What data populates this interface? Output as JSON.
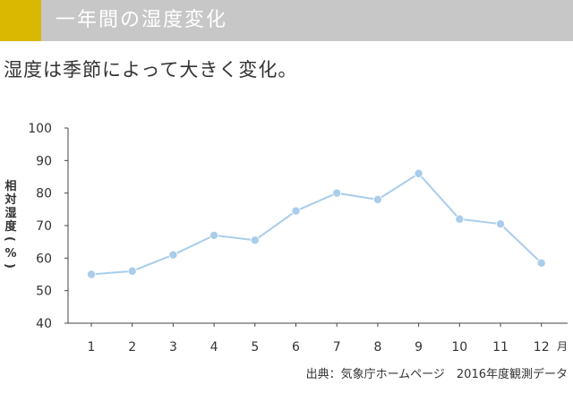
{
  "header": {
    "title": "一年間の湿度変化"
  },
  "subtitle": "湿度は季節によって大きく変化。",
  "source": "出典：気象庁ホームページ　2016年度観測データ",
  "colors": {
    "accent": "#d8b800",
    "header_bg": "#c7c7c7",
    "line": "#a9cdea",
    "marker": "#a9cdea"
  },
  "chart_data": {
    "type": "line",
    "title": "",
    "xlabel": "月",
    "ylabel": "相対湿度(%)",
    "categories": [
      "1",
      "2",
      "3",
      "4",
      "5",
      "6",
      "7",
      "8",
      "9",
      "10",
      "11",
      "12"
    ],
    "ylim": [
      40,
      100
    ],
    "yticks": [
      40,
      50,
      60,
      70,
      80,
      90,
      100
    ],
    "grid": false,
    "series": [
      {
        "values": [
          55,
          56,
          61,
          67,
          65.5,
          74.5,
          80,
          78,
          86,
          72,
          70.5,
          58.5
        ]
      }
    ]
  }
}
